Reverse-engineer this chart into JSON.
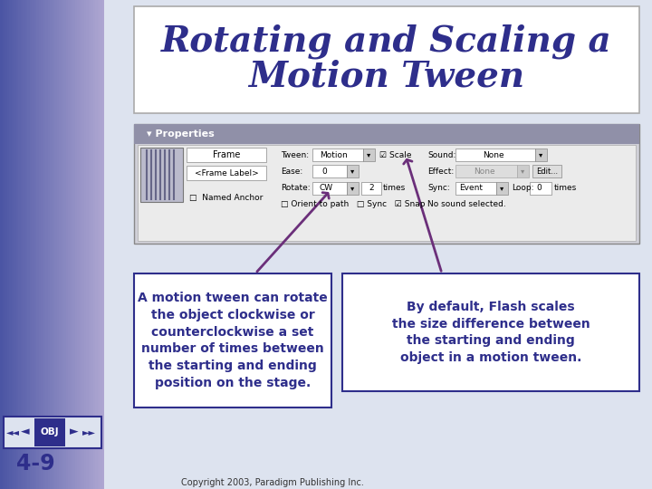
{
  "title_line1": "Rotating and Scaling a",
  "title_line2": "Motion Tween",
  "title_color": "#2e2e8b",
  "title_fontsize": 28,
  "slide_bg": "#c8d0e8",
  "callout1_text": "A motion tween can rotate\nthe object clockwise or\ncounterclockwise a set\nnumber of times between\nthe starting and ending\nposition on the stage.",
  "callout2_text": "By default, Flash scales\nthe size difference between\nthe starting and ending\nobject in a motion tween.",
  "callout_text_color": "#2e2e8b",
  "callout_border_color": "#2e2e8b",
  "callout_bg": "#ffffff",
  "callout_fontsize": 10,
  "arrow_color": "#6b2f7a",
  "footer_text": "Copyright 2003, Paradigm Publishing Inc.",
  "footer_color": "#333333",
  "page_label": "4-9",
  "page_label_color": "#2e2e8b",
  "obj_box_color": "#2e2e8b",
  "left_panel_colors": [
    "#4a5aaa",
    "#5a6ab8",
    "#7080c8",
    "#8090d0",
    "#9098c8"
  ],
  "main_bg": "#dde3ef"
}
